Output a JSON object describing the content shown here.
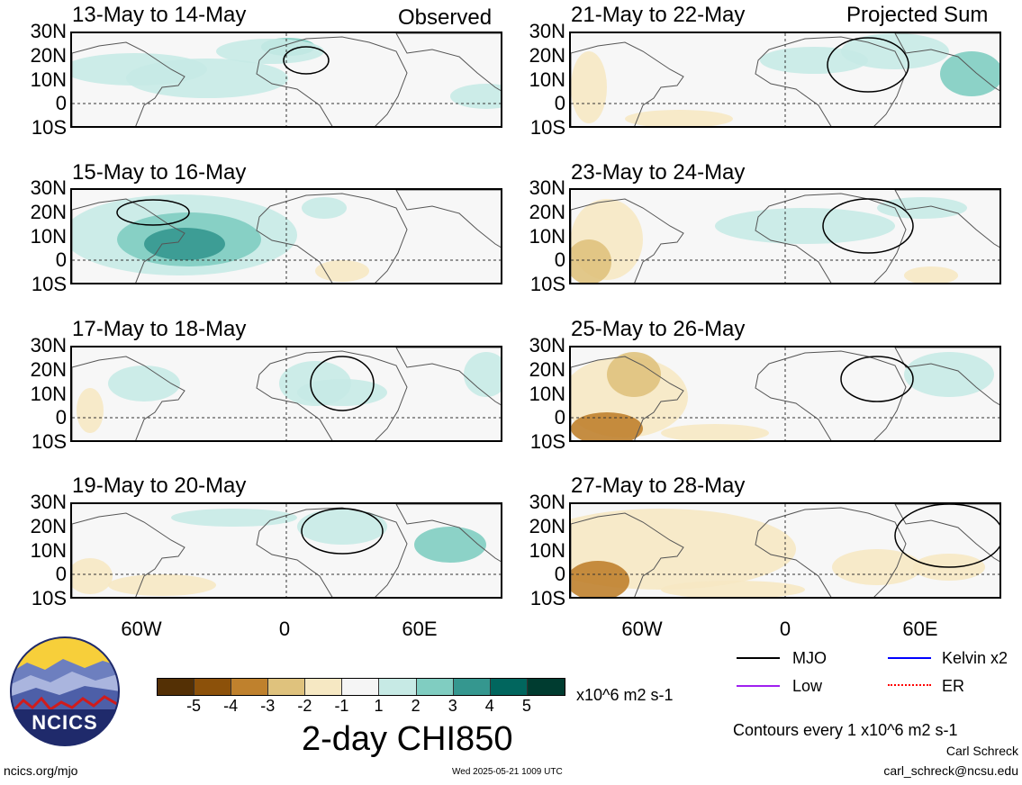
{
  "headers": {
    "observed": "Observed",
    "projected": "Projected Sum"
  },
  "panels": [
    {
      "title": "13-May to 14-May"
    },
    {
      "title": "15-May to 16-May"
    },
    {
      "title": "17-May to 18-May"
    },
    {
      "title": "19-May to 20-May"
    },
    {
      "title": "21-May to 22-May"
    },
    {
      "title": "23-May to 24-May"
    },
    {
      "title": "25-May to 26-May"
    },
    {
      "title": "27-May to 28-May"
    }
  ],
  "lat_labels": [
    "30N",
    "20N",
    "10N",
    "0",
    "10S"
  ],
  "lon_labels": [
    "60W",
    "0",
    "60E"
  ],
  "colorbar": {
    "labels": [
      "-5",
      "-4",
      "-3",
      "-2",
      "-1",
      "1",
      "2",
      "3",
      "4",
      "5"
    ],
    "colors": [
      "#543005",
      "#8c510a",
      "#bf812d",
      "#dfc27d",
      "#f6e8c3",
      "#f5f5f5",
      "#c7eae5",
      "#80cdc1",
      "#35978f",
      "#01665e",
      "#003c30"
    ],
    "units": "x10^6 m2 s-1"
  },
  "title": "2-day CHI850",
  "legend": {
    "mjo": "MJO",
    "kelvin": "Kelvin x2",
    "low": "Low",
    "er": "ER",
    "colors": {
      "mjo": "#000000",
      "kelvin": "#0000ff",
      "low": "#a020f0",
      "er": "#ff0000"
    }
  },
  "contour_note": "Contours every 1 x10^6 m2 s-1",
  "author": "Carl Schreck",
  "email": "carl_schreck@ncsu.edu",
  "url": "ncics.org/mjo",
  "timestamp": "Wed 2025-05-21 1009 UTC",
  "logo_text": "NCICS"
}
